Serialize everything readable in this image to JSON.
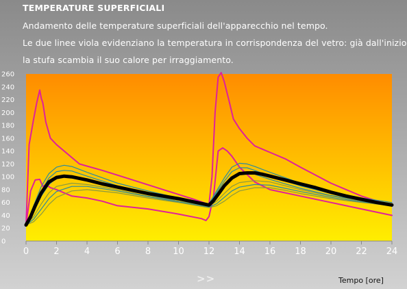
{
  "header": {
    "title": "TEMPERATURE SUPERFICIALI",
    "lines": [
      "Andamento delle temperature superficiali dell'apparecchio nel tempo.",
      "Le due linee viola evidenziano la temperatura in corrispondenza del vetro: già dall'inizio",
      "la stufa scambia il suo calore per irraggiamento."
    ]
  },
  "nav": {
    "next_label": ">>"
  },
  "colors": {
    "bg_top": "#ff8c00",
    "bg_bottom": "#ffee00",
    "purple": "#e0209a",
    "teal": "#2a8aa0",
    "olive": "#8a9a40",
    "black": "#000000"
  },
  "chart_data": {
    "type": "line",
    "xlabel": "Tempo [ore]",
    "ylabel": "",
    "xlim": [
      0,
      24
    ],
    "ylim": [
      0,
      260
    ],
    "xticks": [
      0,
      2,
      4,
      6,
      8,
      10,
      12,
      14,
      16,
      18,
      20,
      22,
      24
    ],
    "yticks": [
      0,
      20,
      40,
      60,
      80,
      100,
      120,
      140,
      160,
      180,
      200,
      220,
      240,
      260
    ],
    "grid": false,
    "series": [
      {
        "color": "#e0209a",
        "width": 2,
        "x": [
          0,
          0.2,
          0.5,
          0.7,
          0.9,
          1.0,
          1.1,
          1.3,
          1.6,
          2,
          3,
          3.5,
          5,
          7,
          9,
          11,
          12,
          12.2,
          12.4,
          12.6,
          12.8,
          13,
          13.3,
          13.6,
          14,
          14.5,
          15,
          16,
          17,
          18,
          20,
          22,
          24
        ],
        "y": [
          25,
          150,
          190,
          215,
          235,
          222,
          215,
          185,
          160,
          150,
          130,
          120,
          110,
          95,
          80,
          65,
          57,
          100,
          200,
          255,
          262,
          248,
          220,
          190,
          175,
          160,
          148,
          138,
          128,
          115,
          90,
          70,
          55
        ]
      },
      {
        "color": "#e0209a",
        "width": 2,
        "x": [
          0,
          0.3,
          0.6,
          0.9,
          1.1,
          1.3,
          1.6,
          2,
          3,
          4,
          5,
          6,
          8,
          10,
          11.5,
          11.8,
          12,
          12.3,
          12.6,
          12.9,
          13.2,
          13.5,
          14,
          15,
          16,
          18,
          20,
          22,
          24
        ],
        "y": [
          25,
          78,
          95,
          96,
          85,
          88,
          83,
          80,
          70,
          67,
          62,
          55,
          50,
          42,
          35,
          32,
          38,
          70,
          140,
          145,
          140,
          132,
          115,
          92,
          80,
          70,
          60,
          50,
          40
        ]
      },
      {
        "color": "#2a8aa0",
        "width": 1.2,
        "x": [
          0,
          0.5,
          1,
          1.5,
          2,
          2.5,
          3,
          4,
          6,
          8,
          10,
          12,
          12.5,
          13,
          13.5,
          14,
          14.5,
          15,
          16,
          18,
          20,
          22,
          24
        ],
        "y": [
          25,
          55,
          85,
          105,
          115,
          118,
          116,
          107,
          90,
          78,
          67,
          58,
          78,
          98,
          115,
          121,
          120,
          116,
          107,
          90,
          77,
          67,
          60
        ]
      },
      {
        "color": "#2a8aa0",
        "width": 1.2,
        "x": [
          0,
          0.5,
          1,
          1.5,
          2,
          2.5,
          3,
          4,
          6,
          8,
          10,
          12,
          12.5,
          13,
          13.5,
          14,
          14.5,
          15,
          16,
          18,
          20,
          22,
          24
        ],
        "y": [
          25,
          50,
          78,
          98,
          108,
          110,
          109,
          101,
          86,
          75,
          64,
          56,
          75,
          93,
          108,
          114,
          114,
          110,
          101,
          86,
          74,
          65,
          58
        ]
      },
      {
        "color": "#2a8aa0",
        "width": 1.2,
        "x": [
          0,
          0.5,
          1,
          1.5,
          2,
          2.5,
          3,
          4,
          6,
          8,
          10,
          12,
          12.5,
          13,
          13.5,
          14,
          14.5,
          15,
          16,
          18,
          20,
          22,
          24
        ],
        "y": [
          25,
          45,
          70,
          88,
          98,
          102,
          102,
          96,
          83,
          72,
          62,
          55,
          70,
          86,
          100,
          106,
          107,
          104,
          96,
          82,
          71,
          63,
          57
        ]
      },
      {
        "color": "#8a9a40",
        "width": 1.2,
        "x": [
          0,
          0.5,
          1,
          1.5,
          2,
          3,
          4,
          6,
          8,
          10,
          12,
          12.5,
          13,
          13.5,
          14,
          15,
          16,
          17,
          18,
          20,
          22,
          24
        ],
        "y": [
          25,
          38,
          58,
          75,
          85,
          90,
          88,
          80,
          70,
          62,
          54,
          62,
          74,
          85,
          91,
          94,
          92,
          86,
          80,
          70,
          62,
          56
        ]
      },
      {
        "color": "#2a8aa0",
        "width": 1.2,
        "x": [
          0,
          0.5,
          1,
          1.5,
          2,
          3,
          4,
          6,
          8,
          10,
          12,
          12.5,
          13,
          13.5,
          14,
          15,
          16,
          17,
          18,
          20,
          22,
          24
        ],
        "y": [
          25,
          34,
          50,
          66,
          77,
          85,
          85,
          78,
          69,
          61,
          53,
          58,
          68,
          78,
          84,
          88,
          87,
          82,
          77,
          68,
          61,
          56
        ]
      },
      {
        "color": "#8a9a40",
        "width": 1.2,
        "x": [
          0,
          0.5,
          1,
          1.5,
          2,
          3,
          4,
          6,
          8,
          10,
          12,
          12.5,
          13,
          13.5,
          14,
          15,
          16,
          17,
          18,
          20,
          22,
          24
        ],
        "y": [
          25,
          30,
          42,
          57,
          68,
          78,
          80,
          75,
          67,
          60,
          52,
          55,
          62,
          71,
          78,
          83,
          83,
          79,
          74,
          66,
          60,
          55
        ]
      },
      {
        "color": "#000000",
        "width": 5,
        "x": [
          0,
          0.3,
          0.6,
          1,
          1.5,
          2,
          2.5,
          3,
          4,
          5,
          6,
          7,
          8,
          9,
          10,
          11,
          12,
          12.3,
          12.7,
          13,
          13.5,
          14,
          14.5,
          15,
          15.5,
          16,
          17,
          18,
          19,
          20,
          21,
          22,
          23,
          24
        ],
        "y": [
          25,
          38,
          55,
          75,
          92,
          99,
          101,
          100,
          95,
          89,
          84,
          79,
          74,
          70,
          66,
          61,
          56,
          63,
          76,
          86,
          98,
          105,
          106,
          106,
          104,
          101,
          95,
          89,
          83,
          76,
          70,
          65,
          60,
          56
        ]
      }
    ]
  }
}
